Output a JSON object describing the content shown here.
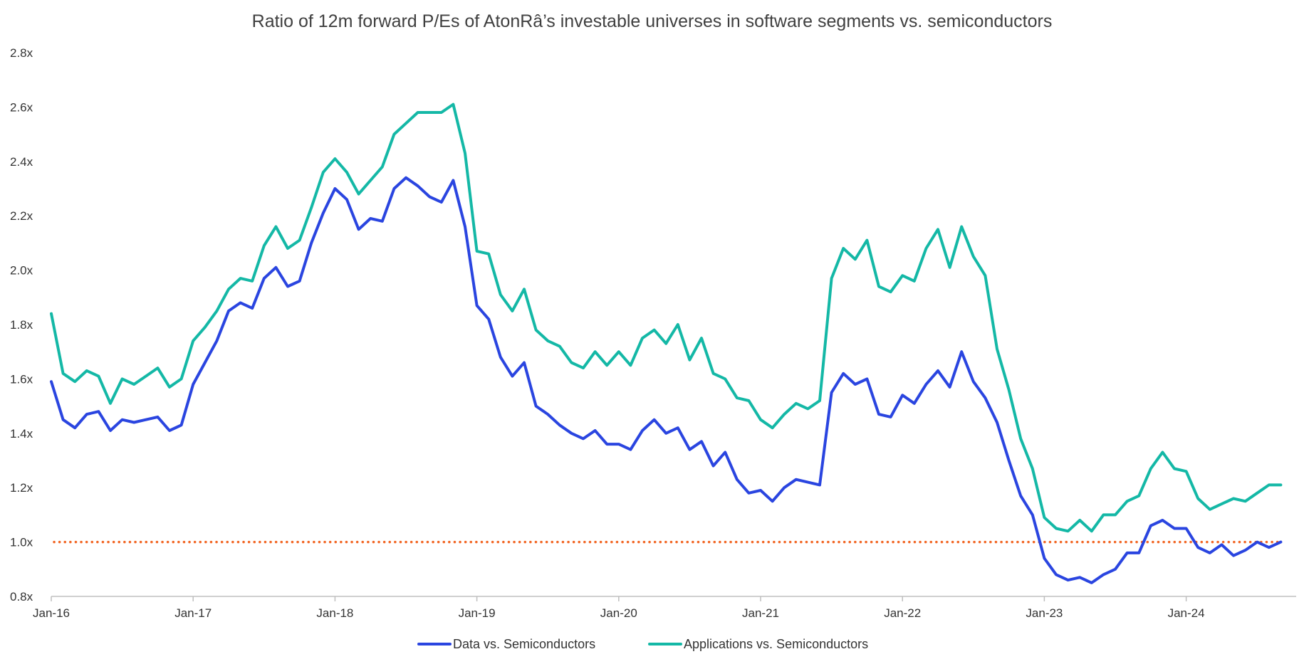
{
  "chart_data": {
    "type": "line",
    "title": "Ratio of 12m forward P/Es of AtonRâ’s investable universes in software segments vs. semiconductors",
    "xlabel": "",
    "ylabel": "",
    "x_start": "Jan-16",
    "x_tick_labels": [
      "Jan-16",
      "Jan-17",
      "Jan-18",
      "Jan-19",
      "Jan-20",
      "Jan-21",
      "Jan-22",
      "Jan-23",
      "Jan-24"
    ],
    "y_tick_labels": [
      "0.8x",
      "1.0x",
      "1.2x",
      "1.4x",
      "1.6x",
      "1.8x",
      "2.0x",
      "2.2x",
      "2.4x",
      "2.6x",
      "2.8x"
    ],
    "ylim": [
      0.8,
      2.8
    ],
    "grid": false,
    "legend_position": "bottom",
    "reference_line": {
      "value": 1.0,
      "color": "#f26522",
      "style": "dotted"
    },
    "series": [
      {
        "name": "Data vs. Semiconductors",
        "color": "#2a45e0",
        "values": [
          1.59,
          1.45,
          1.42,
          1.47,
          1.48,
          1.41,
          1.45,
          1.44,
          1.45,
          1.46,
          1.41,
          1.43,
          1.58,
          1.66,
          1.74,
          1.85,
          1.88,
          1.86,
          1.97,
          2.01,
          1.94,
          1.96,
          2.1,
          2.21,
          2.3,
          2.26,
          2.15,
          2.19,
          2.18,
          2.3,
          2.34,
          2.31,
          2.27,
          2.25,
          2.33,
          2.16,
          1.87,
          1.82,
          1.68,
          1.61,
          1.66,
          1.5,
          1.47,
          1.43,
          1.4,
          1.38,
          1.41,
          1.36,
          1.36,
          1.34,
          1.41,
          1.45,
          1.4,
          1.42,
          1.34,
          1.37,
          1.28,
          1.33,
          1.23,
          1.18,
          1.19,
          1.15,
          1.2,
          1.23,
          1.22,
          1.21,
          1.55,
          1.62,
          1.58,
          1.6,
          1.47,
          1.46,
          1.54,
          1.51,
          1.58,
          1.63,
          1.57,
          1.7,
          1.59,
          1.53,
          1.44,
          1.3,
          1.17,
          1.1,
          0.94,
          0.88,
          0.86,
          0.87,
          0.85,
          0.88,
          0.9,
          0.96,
          0.96,
          1.06,
          1.08,
          1.05,
          1.05,
          0.98,
          0.96,
          0.99,
          0.95,
          0.97,
          1.0,
          0.98,
          1.0
        ]
      },
      {
        "name": "Applications vs. Semiconductors",
        "color": "#14b8a6",
        "values": [
          1.84,
          1.62,
          1.59,
          1.63,
          1.61,
          1.51,
          1.6,
          1.58,
          1.61,
          1.64,
          1.57,
          1.6,
          1.74,
          1.79,
          1.85,
          1.93,
          1.97,
          1.96,
          2.09,
          2.16,
          2.08,
          2.11,
          2.23,
          2.36,
          2.41,
          2.36,
          2.28,
          2.33,
          2.38,
          2.5,
          2.54,
          2.58,
          2.58,
          2.58,
          2.61,
          2.43,
          2.07,
          2.06,
          1.91,
          1.85,
          1.93,
          1.78,
          1.74,
          1.72,
          1.66,
          1.64,
          1.7,
          1.65,
          1.7,
          1.65,
          1.75,
          1.78,
          1.73,
          1.8,
          1.67,
          1.75,
          1.62,
          1.6,
          1.53,
          1.52,
          1.45,
          1.42,
          1.47,
          1.51,
          1.49,
          1.52,
          1.97,
          2.08,
          2.04,
          2.11,
          1.94,
          1.92,
          1.98,
          1.96,
          2.08,
          2.15,
          2.01,
          2.16,
          2.05,
          1.98,
          1.71,
          1.56,
          1.38,
          1.27,
          1.09,
          1.05,
          1.04,
          1.08,
          1.04,
          1.1,
          1.1,
          1.15,
          1.17,
          1.27,
          1.33,
          1.27,
          1.26,
          1.16,
          1.12,
          1.14,
          1.16,
          1.15,
          1.18,
          1.21,
          1.21
        ]
      }
    ]
  }
}
